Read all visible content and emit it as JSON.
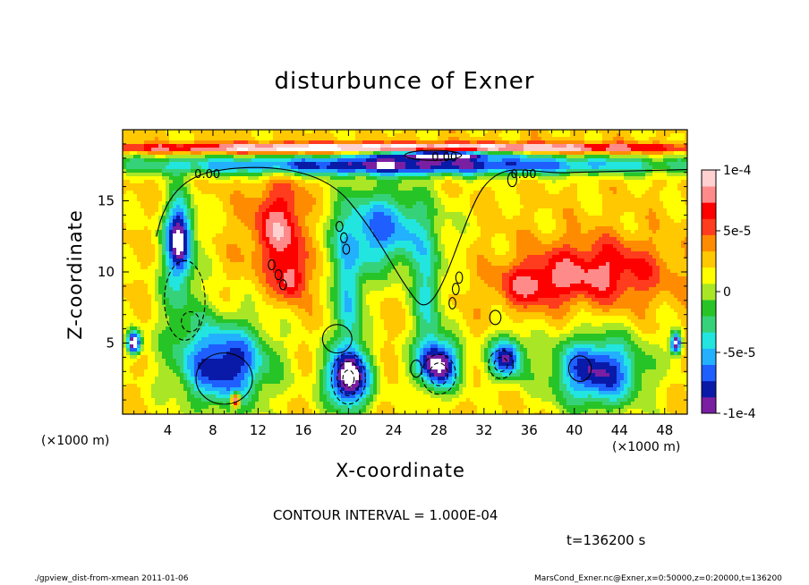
{
  "chart_data": {
    "type": "heatmap",
    "title": "disturbunce of Exner",
    "xlabel": "X-coordinate",
    "ylabel": "Z-coordinate",
    "x_unit_label": "(×1000 m)",
    "xlim": [
      0,
      50
    ],
    "ylim": [
      0,
      20
    ],
    "x_ticks": [
      4,
      8,
      12,
      16,
      20,
      24,
      28,
      32,
      36,
      40,
      44,
      48
    ],
    "y_ticks": [
      5,
      10,
      15
    ],
    "colorbar": {
      "min": -0.0001,
      "max": 0.0001,
      "tick_labels": [
        "1e-4",
        "5e-5",
        "0",
        "-5e-5",
        "-1e-4"
      ],
      "colors": [
        "#7a1fa2",
        "#0a1aa8",
        "#1f5fff",
        "#22b0ff",
        "#22e5e0",
        "#36d27a",
        "#27c427",
        "#a9e626",
        "#ffff00",
        "#ffc800",
        "#ff8c00",
        "#ff3c1e",
        "#ff0000",
        "#ff8a8a",
        "#ffd0d0"
      ]
    },
    "contour_interval_text": "CONTOUR INTERVAL = 1.000E-04",
    "contour_label": "0.00",
    "time_text": "t=136200 s"
  },
  "footer": {
    "left": "./gpview_dist-from-xmean  2011-01-06",
    "right": "MarsCond_Exner.nc@Exner,x=0:50000,z=0:20000,t=136200"
  }
}
